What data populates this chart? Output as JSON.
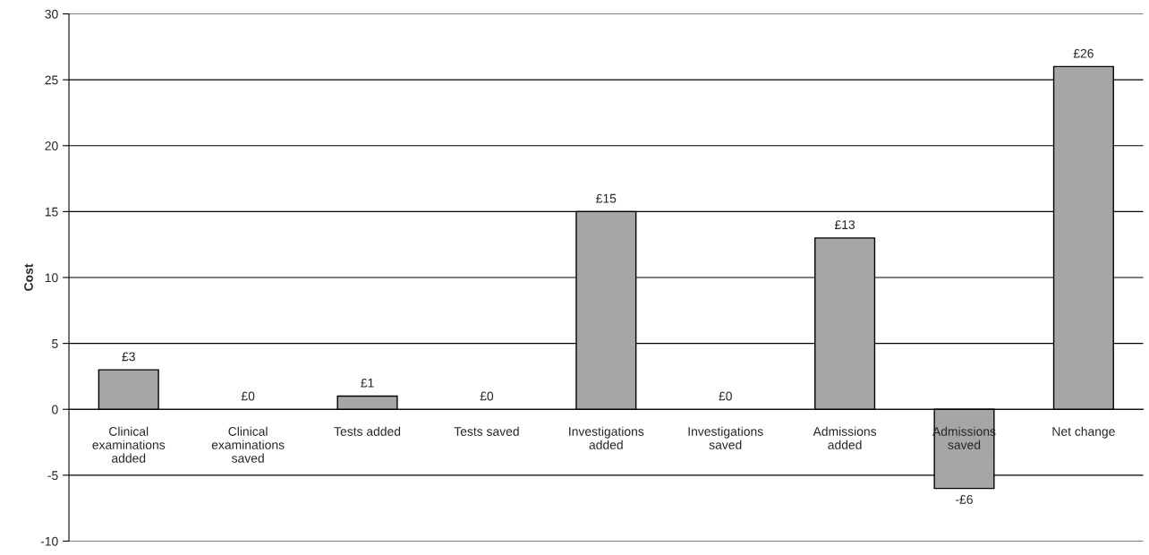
{
  "chart_data": {
    "type": "bar",
    "ylabel": "Cost",
    "categories": [
      "Clinical\nexaminations\nadded",
      "Clinical\nexaminations\nsaved",
      "Tests added",
      "Tests saved",
      "Investigations\nadded",
      "Investigations\nsaved",
      "Admissions\nadded",
      "Admissions\nsaved",
      "Net change"
    ],
    "values": [
      3,
      0,
      1,
      0,
      15,
      0,
      13,
      -6,
      26
    ],
    "value_labels": [
      "£3",
      "£0",
      "£1",
      "£0",
      "£15",
      "£0",
      "£13",
      "-£6",
      "£26"
    ],
    "color": "#a6a6a6",
    "ylim": [
      -10,
      30
    ],
    "yticks": [
      -10,
      -5,
      0,
      5,
      10,
      15,
      20,
      25,
      30
    ],
    "grid": "y",
    "legend": false
  }
}
